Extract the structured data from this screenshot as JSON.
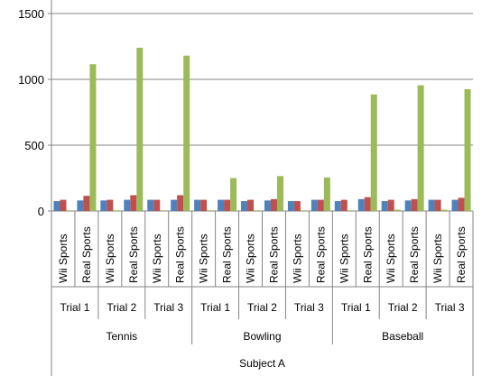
{
  "chart_data": {
    "type": "bar",
    "title": "",
    "xlabel": "Subject A",
    "ylabel": "",
    "ylim": [
      0,
      1500
    ],
    "yticks": [
      "0",
      "500",
      "1000",
      "1500"
    ],
    "grid": true,
    "legend": "none",
    "group_labels": [
      "Tennis",
      "Bowling",
      "Baseball"
    ],
    "trial_labels": [
      "Trial 1",
      "Trial 2",
      "Trial 3"
    ],
    "categories": [
      "Wii Sports",
      "Real Sports",
      "Wii Sports",
      "Real Sports",
      "Wii Sports",
      "Real Sports",
      "Wii Sports",
      "Real Sports",
      "Wii Sports",
      "Real Sports",
      "Wii Sports",
      "Real Sports",
      "Wii Sports",
      "Real Sports",
      "Wii Sports",
      "Real Sports",
      "Wii Sports",
      "Real Sports"
    ],
    "series": [
      {
        "color": "#4F81BD",
        "values": [
          75,
          80,
          80,
          85,
          85,
          85,
          85,
          85,
          75,
          80,
          75,
          85,
          75,
          90,
          75,
          80,
          85,
          85
        ]
      },
      {
        "color": "#C0504D",
        "values": [
          85,
          115,
          85,
          120,
          85,
          120,
          85,
          85,
          85,
          90,
          75,
          85,
          85,
          105,
          85,
          90,
          85,
          100
        ]
      },
      {
        "color": "#9BBB59",
        "values": [
          5,
          1115,
          5,
          1240,
          5,
          1180,
          5,
          250,
          5,
          265,
          5,
          255,
          5,
          885,
          10,
          955,
          10,
          925
        ]
      }
    ]
  }
}
